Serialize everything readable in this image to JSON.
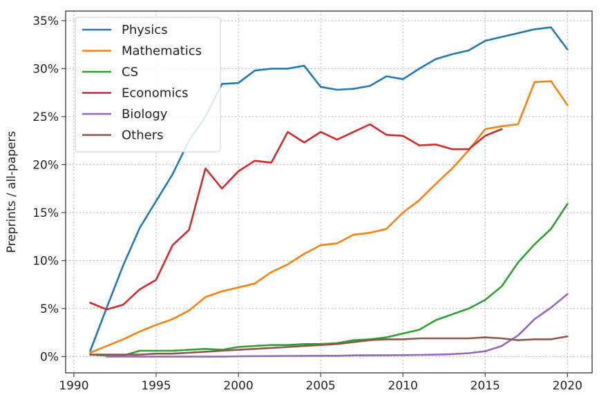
{
  "chart_data": {
    "type": "line",
    "title": "",
    "xlabel": "",
    "ylabel": "Preprints / all-papers",
    "xlim": [
      1989.5,
      2021.5
    ],
    "ylim": [
      -0.017,
      0.36
    ],
    "xticks": [
      1990,
      1995,
      2000,
      2005,
      2010,
      2015,
      2020
    ],
    "yticks": [
      0,
      0.05,
      0.1,
      0.15,
      0.2,
      0.25,
      0.3,
      0.35
    ],
    "ytick_labels": [
      "0%",
      "5%",
      "10%",
      "15%",
      "20%",
      "25%",
      "30%",
      "35%"
    ],
    "grid": true,
    "legend_position": "top-left",
    "series": [
      {
        "name": "Physics",
        "color": "#1f77b4",
        "x": [
          1991,
          1992,
          1993,
          1994,
          1995,
          1996,
          1997,
          1998,
          1999,
          2000,
          2001,
          2002,
          2003,
          2004,
          2005,
          2006,
          2007,
          2008,
          2009,
          2010,
          2011,
          2012,
          2013,
          2014,
          2015,
          2016,
          2017,
          2018,
          2019,
          2020
        ],
        "y": [
          0.006,
          0.051,
          0.095,
          0.134,
          0.162,
          0.19,
          0.225,
          0.25,
          0.284,
          0.285,
          0.298,
          0.3,
          0.3,
          0.303,
          0.281,
          0.278,
          0.279,
          0.282,
          0.292,
          0.289,
          0.3,
          0.31,
          0.315,
          0.319,
          0.329,
          0.333,
          0.337,
          0.341,
          0.343,
          0.32
        ]
      },
      {
        "name": "Mathematics",
        "color": "#ff7f0e",
        "x": [
          1991,
          1992,
          1993,
          1994,
          1995,
          1996,
          1997,
          1998,
          1999,
          2000,
          2001,
          2002,
          2003,
          2004,
          2005,
          2006,
          2007,
          2008,
          2009,
          2010,
          2011,
          2012,
          2013,
          2014,
          2015,
          2016,
          2017,
          2018,
          2019,
          2020
        ],
        "y": [
          0.004,
          0.011,
          0.018,
          0.026,
          0.033,
          0.039,
          0.048,
          0.062,
          0.068,
          0.072,
          0.076,
          0.088,
          0.096,
          0.107,
          0.116,
          0.118,
          0.127,
          0.129,
          0.133,
          0.15,
          0.163,
          0.18,
          0.196,
          0.215,
          0.237,
          0.24,
          0.242,
          0.286,
          0.287,
          0.262
        ]
      },
      {
        "name": "CS",
        "color": "#2ca02c",
        "x": [
          1991,
          1992,
          1993,
          1994,
          1995,
          1996,
          1997,
          1998,
          1999,
          2000,
          2001,
          2002,
          2003,
          2004,
          2005,
          2006,
          2007,
          2008,
          2009,
          2010,
          2011,
          2012,
          2013,
          2014,
          2015,
          2016,
          2017,
          2018,
          2019,
          2020
        ],
        "y": [
          0.002,
          0.001,
          0.001,
          0.006,
          0.006,
          0.006,
          0.007,
          0.008,
          0.007,
          0.01,
          0.011,
          0.012,
          0.012,
          0.013,
          0.013,
          0.014,
          0.017,
          0.018,
          0.02,
          0.024,
          0.028,
          0.038,
          0.044,
          0.05,
          0.059,
          0.073,
          0.098,
          0.117,
          0.133,
          0.159
        ]
      },
      {
        "name": "Economics",
        "color": "#d62728",
        "x": [
          1991,
          1992,
          1993,
          1994,
          1995,
          1996,
          1997,
          1998,
          1999,
          2000,
          2001,
          2002,
          2003,
          2004,
          2005,
          2006,
          2007,
          2008,
          2009,
          2010,
          2011,
          2012,
          2013,
          2014,
          2015,
          2016
        ],
        "y": [
          0.056,
          0.049,
          0.054,
          0.07,
          0.08,
          0.116,
          0.132,
          0.196,
          0.175,
          0.193,
          0.204,
          0.202,
          0.234,
          0.223,
          0.234,
          0.226,
          0.234,
          0.242,
          0.231,
          0.23,
          0.22,
          0.221,
          0.216,
          0.216,
          0.23,
          0.237
        ]
      },
      {
        "name": "Biology",
        "color": "#9467bd",
        "x": [
          1992,
          1993,
          1994,
          1995,
          1996,
          1997,
          1998,
          1999,
          2000,
          2001,
          2002,
          2003,
          2004,
          2005,
          2006,
          2007,
          2008,
          2009,
          2010,
          2011,
          2012,
          2013,
          2014,
          2015,
          2016,
          2017,
          2018,
          2019,
          2020
        ],
        "y": [
          0.0,
          0.0,
          0.0,
          0.0,
          0.0,
          0.0,
          0.0,
          0.0,
          0.0003,
          0.0004,
          0.0005,
          0.0006,
          0.0007,
          0.0008,
          0.0008,
          0.0012,
          0.0013,
          0.0013,
          0.0015,
          0.0017,
          0.002,
          0.0025,
          0.0035,
          0.0055,
          0.011,
          0.022,
          0.039,
          0.051,
          0.065
        ]
      },
      {
        "name": "Others",
        "color": "#8c564b",
        "x": [
          1991,
          1992,
          1993,
          1994,
          1995,
          1996,
          1997,
          1998,
          1999,
          2000,
          2001,
          2002,
          2003,
          2004,
          2005,
          2006,
          2007,
          2008,
          2009,
          2010,
          2011,
          2012,
          2013,
          2014,
          2015,
          2016,
          2017,
          2018,
          2019,
          2020
        ],
        "y": [
          0.002,
          0.002,
          0.002,
          0.002,
          0.003,
          0.003,
          0.004,
          0.005,
          0.006,
          0.007,
          0.008,
          0.009,
          0.01,
          0.011,
          0.012,
          0.013,
          0.015,
          0.017,
          0.018,
          0.018,
          0.019,
          0.019,
          0.019,
          0.019,
          0.02,
          0.019,
          0.017,
          0.018,
          0.018,
          0.021
        ]
      }
    ]
  }
}
